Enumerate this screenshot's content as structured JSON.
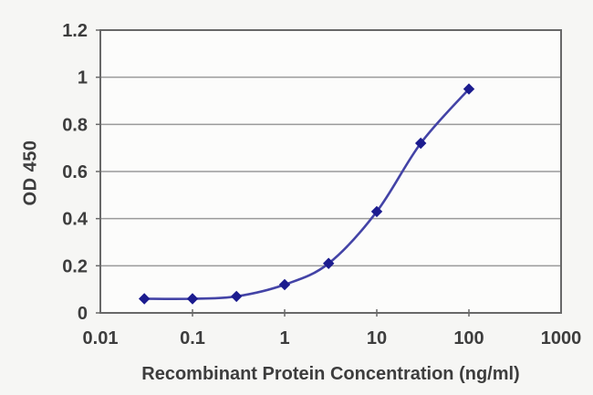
{
  "chart_data": {
    "type": "line",
    "title": "",
    "xlabel": "Recombinant Protein Concentration (ng/ml)",
    "ylabel": "OD 450",
    "x_scale": "log",
    "x": [
      0.03,
      0.1,
      0.3,
      1,
      3,
      10,
      30,
      100
    ],
    "series": [
      {
        "name": "OD 450",
        "values": [
          0.06,
          0.06,
          0.07,
          0.12,
          0.21,
          0.43,
          0.72,
          0.95
        ]
      }
    ],
    "x_tick_labels": [
      "0.01",
      "0.1",
      "1",
      "10",
      "100",
      "1000"
    ],
    "x_tick_values": [
      0.01,
      0.1,
      1,
      10,
      100,
      1000
    ],
    "y_tick_labels": [
      "0",
      "0.2",
      "0.4",
      "0.6",
      "0.8",
      "1",
      "1.2"
    ],
    "y_tick_values": [
      0,
      0.2,
      0.4,
      0.6,
      0.8,
      1,
      1.2
    ],
    "xlim": [
      0.01,
      1000
    ],
    "ylim": [
      0,
      1.2
    ],
    "grid": "horizontal",
    "legend": "none",
    "marker": "diamond",
    "line_style": "smooth",
    "colors": {
      "line": "#4343a6",
      "marker": "#1c1c8f",
      "grid": "#9a9a9a",
      "axis_border": "#686868",
      "tick": "#686868",
      "text": "#3d3d3d",
      "plot_bg": "#fcfcfb",
      "page_bg": "#f6f6f4"
    }
  }
}
